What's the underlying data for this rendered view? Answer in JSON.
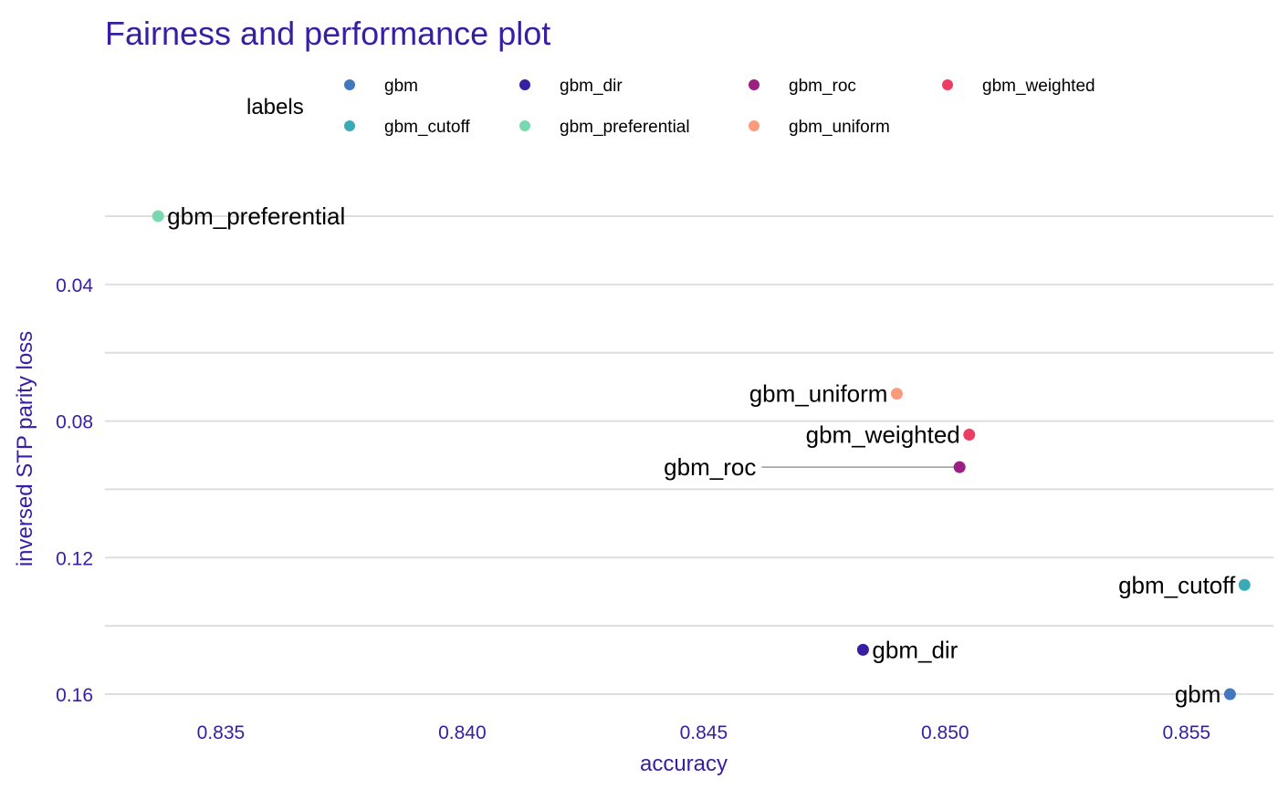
{
  "chart_data": {
    "type": "scatter",
    "title": "Fairness and performance plot",
    "xlabel": "accuracy",
    "ylabel": "inversed STP parity loss",
    "xlim": [
      0.8326,
      0.8568
    ],
    "ylim": [
      0.0128,
      0.1672
    ],
    "y_reversed": true,
    "x_ticks": [
      "0.835",
      "0.840",
      "0.845",
      "0.850",
      "0.855"
    ],
    "y_ticks": [
      "0.04",
      "0.08",
      "0.12",
      "0.16"
    ],
    "grid": "horizontal",
    "legend": {
      "title": "labels",
      "placement": "top",
      "entries": [
        {
          "label": "gbm",
          "color": "#4378bf"
        },
        {
          "label": "gbm_dir",
          "color": "#371ea3"
        },
        {
          "label": "gbm_roc",
          "color": "#9c1f83"
        },
        {
          "label": "gbm_weighted",
          "color": "#ec3d63"
        },
        {
          "label": "gbm_cutoff",
          "color": "#3aaab5"
        },
        {
          "label": "gbm_preferential",
          "color": "#7ad8b0"
        },
        {
          "label": "gbm_uniform",
          "color": "#fb9b7e"
        }
      ]
    },
    "points": [
      {
        "label": "gbm_preferential",
        "x": 0.8337,
        "y": 0.02,
        "color": "#7ad8b0",
        "label_side": "right"
      },
      {
        "label": "gbm_uniform",
        "x": 0.849,
        "y": 0.072,
        "color": "#fb9b7e",
        "label_side": "left"
      },
      {
        "label": "gbm_weighted",
        "x": 0.8505,
        "y": 0.084,
        "color": "#ec3d63",
        "label_side": "left"
      },
      {
        "label": "gbm_roc",
        "x": 0.8503,
        "y": 0.0935,
        "color": "#9c1f83",
        "label_side": "left",
        "leader_to_x": 0.8462
      },
      {
        "label": "gbm_cutoff",
        "x": 0.8562,
        "y": 0.128,
        "color": "#3aaab5",
        "label_side": "left"
      },
      {
        "label": "gbm_dir",
        "x": 0.8483,
        "y": 0.147,
        "color": "#371ea3",
        "label_side": "right"
      },
      {
        "label": "gbm",
        "x": 0.8559,
        "y": 0.16,
        "color": "#4378bf",
        "label_side": "left"
      }
    ]
  }
}
